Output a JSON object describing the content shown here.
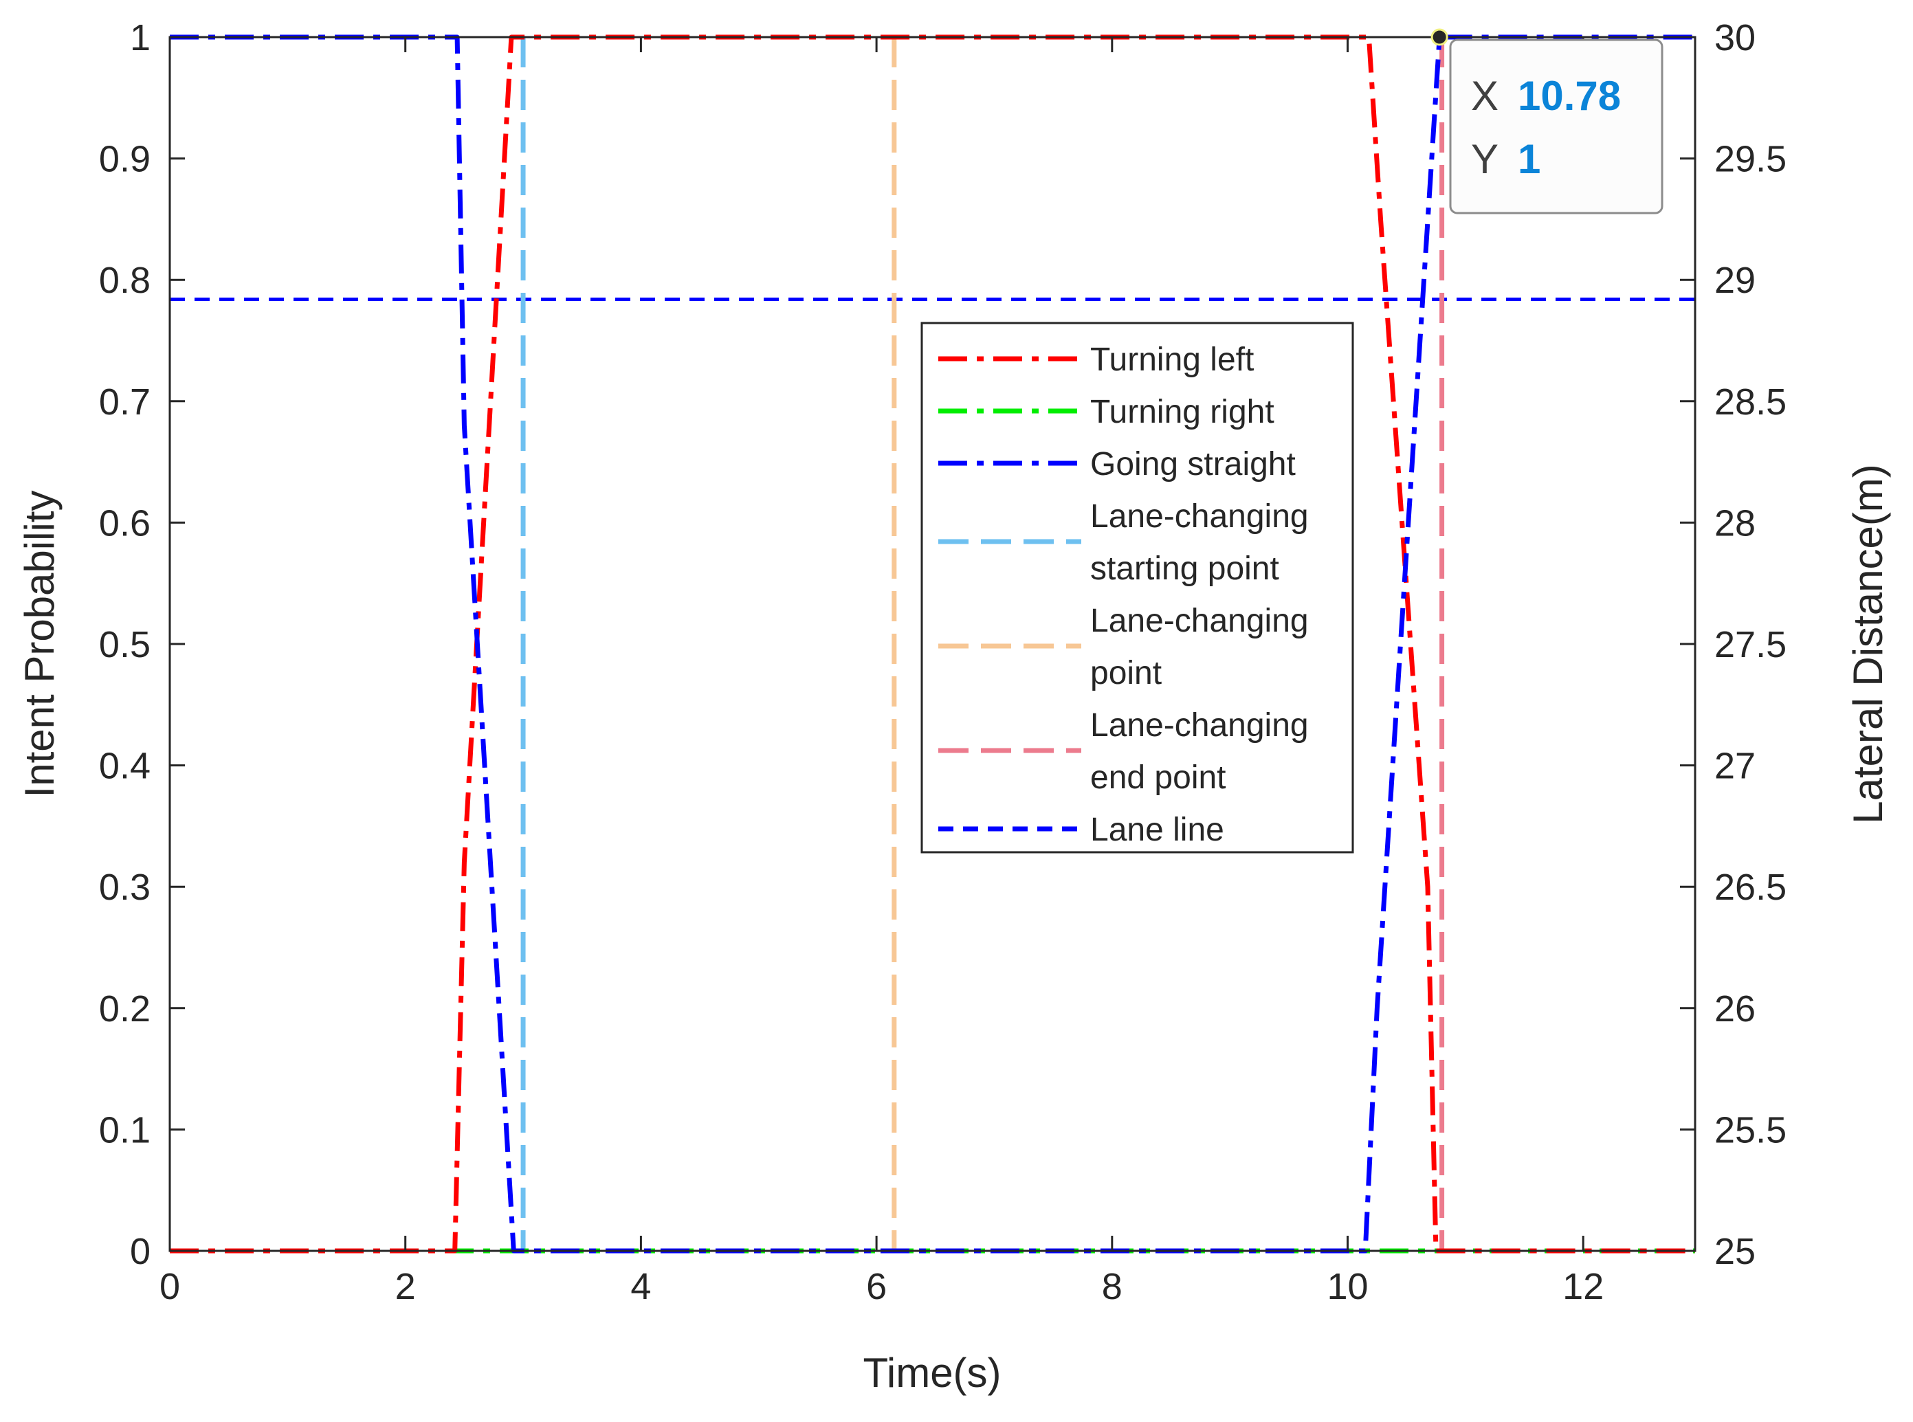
{
  "chart_data": {
    "type": "line",
    "xlabel": "Time(s)",
    "ylabel": "Intent Probability",
    "ylabel_right": "Lateral Distance(m)",
    "xlim": [
      0,
      12.95
    ],
    "ylim": [
      0,
      1
    ],
    "ylim_right": [
      25,
      30
    ],
    "x_ticks": [
      "0",
      "2",
      "4",
      "6",
      "8",
      "10",
      "12"
    ],
    "x_tick_values": [
      0,
      2,
      4,
      6,
      8,
      10,
      12
    ],
    "y_ticks": [
      "0",
      "0.1",
      "0.2",
      "0.3",
      "0.4",
      "0.5",
      "0.6",
      "0.7",
      "0.8",
      "0.9",
      "1"
    ],
    "y_tick_values": [
      0,
      0.1,
      0.2,
      0.3,
      0.4,
      0.5,
      0.6,
      0.7,
      0.8,
      0.9,
      1
    ],
    "y_right_ticks": [
      "25",
      "25.5",
      "26",
      "26.5",
      "27",
      "27.5",
      "28",
      "28.5",
      "29",
      "29.5",
      "30"
    ],
    "y_right_tick_values": [
      25,
      25.5,
      26,
      26.5,
      27,
      27.5,
      28,
      28.5,
      29,
      29.5,
      30
    ],
    "grid": false,
    "legend_position": "center",
    "series": [
      {
        "name": "Turning left",
        "color": "#ff0000",
        "style": "dashdot",
        "x": [
          0,
          2.42,
          2.5,
          2.9,
          10.18,
          10.28,
          10.68,
          10.75,
          12.95
        ],
        "y": [
          0,
          0,
          0.32,
          1,
          1,
          0.85,
          0.3,
          0,
          0
        ]
      },
      {
        "name": "Turning right",
        "color": "#00ee00",
        "style": "dashdot",
        "x": [
          0,
          12.95
        ],
        "y": [
          0,
          0
        ]
      },
      {
        "name": "Going straight",
        "color": "#0000ff",
        "style": "dashdot",
        "x": [
          0,
          2.44,
          2.5,
          2.92,
          10.15,
          10.25,
          10.78,
          12.95
        ],
        "y": [
          1,
          1,
          0.68,
          0,
          0,
          0.2,
          1,
          1
        ]
      }
    ],
    "vertical_lines": [
      {
        "name": "Lane-changing starting point",
        "x": 3.0,
        "color": "#6ec0f0"
      },
      {
        "name": "Lane-changing point",
        "x": 6.15,
        "color": "#f7c795"
      },
      {
        "name": "Lane-changing end point",
        "x": 10.8,
        "color": "#ec7b8d"
      }
    ],
    "horizontal_lines": [
      {
        "name": "Lane line",
        "y_right": 28.92,
        "color": "#0000ff"
      }
    ],
    "legend": [
      {
        "lines": [
          "Turning left"
        ],
        "color": "#ff0000",
        "style": "dashdot"
      },
      {
        "lines": [
          "Turning right"
        ],
        "color": "#00ee00",
        "style": "dashdot"
      },
      {
        "lines": [
          "Going straight"
        ],
        "color": "#0000ff",
        "style": "dashdot"
      },
      {
        "lines": [
          "Lane-changing",
          "starting point"
        ],
        "color": "#6ec0f0",
        "style": "dashed"
      },
      {
        "lines": [
          "Lane-changing",
          "point"
        ],
        "color": "#f7c795",
        "style": "dashed"
      },
      {
        "lines": [
          "Lane-changing",
          " end point"
        ],
        "color": "#ec7b8d",
        "style": "dashed"
      },
      {
        "lines": [
          "Lane line"
        ],
        "color": "#0000ff",
        "style": "shortdash"
      }
    ],
    "datatip": {
      "x_label": "X",
      "x_value": "10.78",
      "y_label": "Y",
      "y_value": "1",
      "point": {
        "x": 10.78,
        "y": 1
      }
    }
  }
}
